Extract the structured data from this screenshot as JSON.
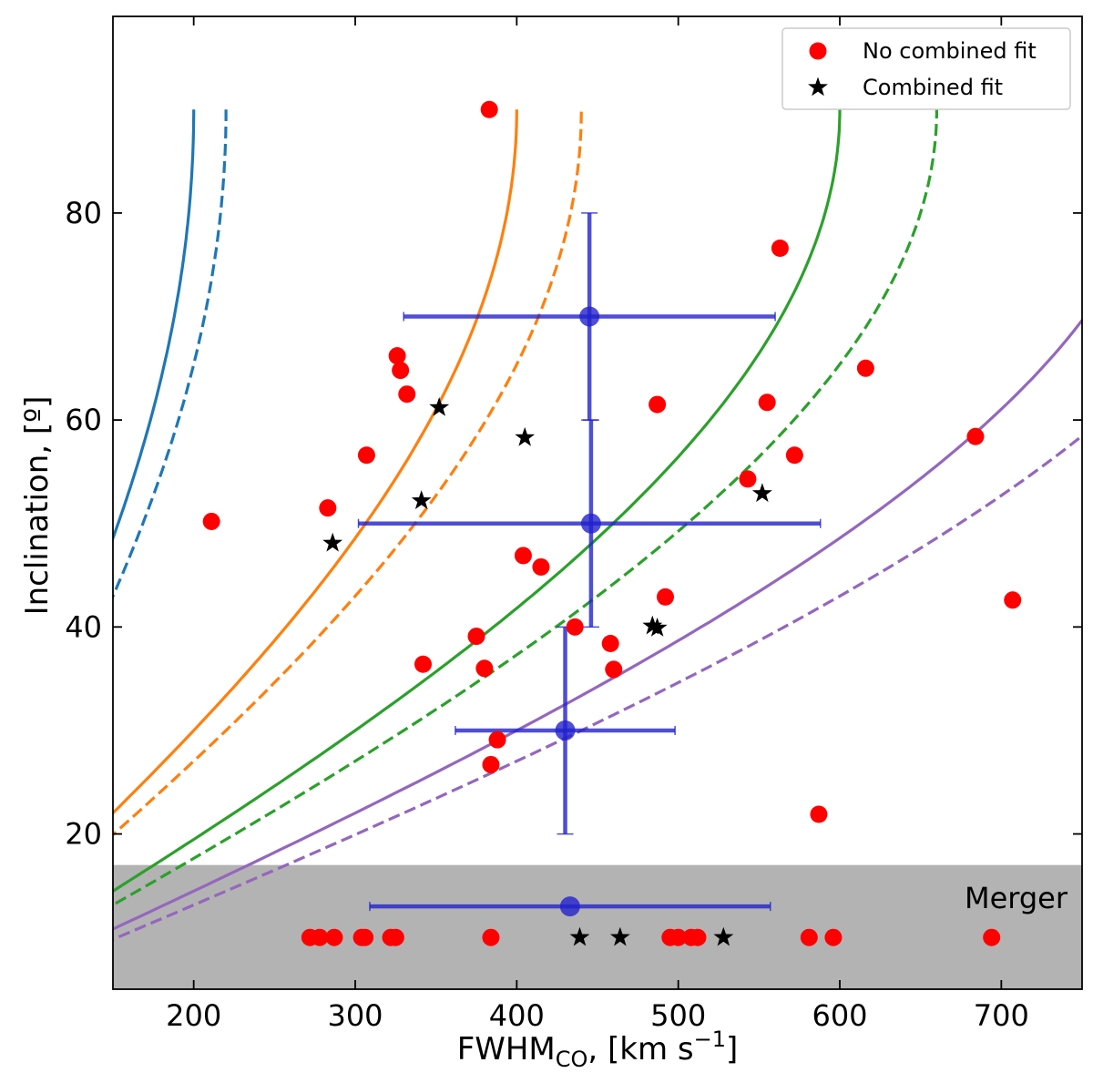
{
  "chart_data": {
    "type": "scatter",
    "xlabel_main": "FWHM",
    "xlabel_sub": "CO",
    "xlabel_rest": ", [km s",
    "xlabel_sup": "−1",
    "xlabel_end": "]",
    "ylabel": "Inclination, [º]",
    "xlim": [
      150,
      750
    ],
    "ylim": [
      5,
      99
    ],
    "xticks": [
      200,
      300,
      400,
      500,
      600,
      700
    ],
    "yticks": [
      20,
      40,
      60,
      80
    ],
    "grid": false,
    "legend_position": "top-right",
    "legend": [
      {
        "label": "No combined fit",
        "marker": "circle",
        "color": "#ff0000"
      },
      {
        "label": "Combined fit",
        "marker": "star",
        "color": "#000000"
      }
    ],
    "merger_band": {
      "label": "Merger",
      "y_range": [
        5,
        17
      ],
      "color": "#b3b3b3"
    },
    "series": [
      {
        "name": "No combined fit",
        "marker": "circle",
        "color": "#ff0000",
        "x": [
          211,
          283,
          307,
          326,
          328,
          332,
          342,
          375,
          380,
          383,
          384,
          388,
          404,
          415,
          436,
          458,
          460,
          487,
          492,
          543,
          555,
          563,
          572,
          587,
          616,
          684,
          707,
          272,
          278,
          287,
          304,
          306,
          322,
          325,
          384,
          495,
          500,
          508,
          512,
          581,
          596,
          694
        ],
        "y": [
          50.2,
          51.5,
          56.6,
          66.2,
          64.8,
          62.5,
          36.4,
          39.1,
          36.0,
          90.0,
          26.7,
          29.1,
          46.9,
          45.8,
          40.0,
          38.4,
          35.9,
          61.5,
          42.9,
          54.3,
          61.7,
          76.6,
          56.6,
          21.9,
          65.0,
          58.4,
          42.6,
          10,
          10,
          10,
          10,
          10,
          10,
          10,
          10,
          10,
          10,
          10,
          10,
          10,
          10,
          10
        ]
      },
      {
        "name": "Combined fit",
        "marker": "star",
        "color": "#000000",
        "x": [
          286,
          341,
          352,
          405,
          484,
          487,
          552,
          439,
          464,
          528
        ],
        "y": [
          48.1,
          52.2,
          61.2,
          58.3,
          40.1,
          39.9,
          52.9,
          10,
          10,
          10
        ]
      }
    ],
    "error_points": [
      {
        "x": 445,
        "y": 70,
        "x_err": [
          330,
          560
        ],
        "y_err": [
          60,
          80
        ]
      },
      {
        "x": 446,
        "y": 50,
        "x_err": [
          302,
          588
        ],
        "y_err": [
          40,
          60
        ]
      },
      {
        "x": 430,
        "y": 30,
        "x_err": [
          362,
          498
        ],
        "y_err": [
          20,
          40
        ]
      },
      {
        "x": 433,
        "y": 13,
        "x_err": [
          309,
          557
        ],
        "y_err": null
      }
    ],
    "error_color": "#2222cc",
    "curves": [
      {
        "color": "#1f77b4",
        "style": "solid",
        "v": 200
      },
      {
        "color": "#1f77b4",
        "style": "dashed",
        "v": 200
      },
      {
        "color": "#ff7f0e",
        "style": "solid",
        "v": 400
      },
      {
        "color": "#ff7f0e",
        "style": "dashed",
        "v": 400
      },
      {
        "color": "#2ca02c",
        "style": "solid",
        "v": 600
      },
      {
        "color": "#2ca02c",
        "style": "dashed",
        "v": 600
      },
      {
        "color": "#9467bd",
        "style": "solid",
        "v": 800
      },
      {
        "color": "#9467bd",
        "style": "dashed",
        "v": 800
      }
    ]
  }
}
